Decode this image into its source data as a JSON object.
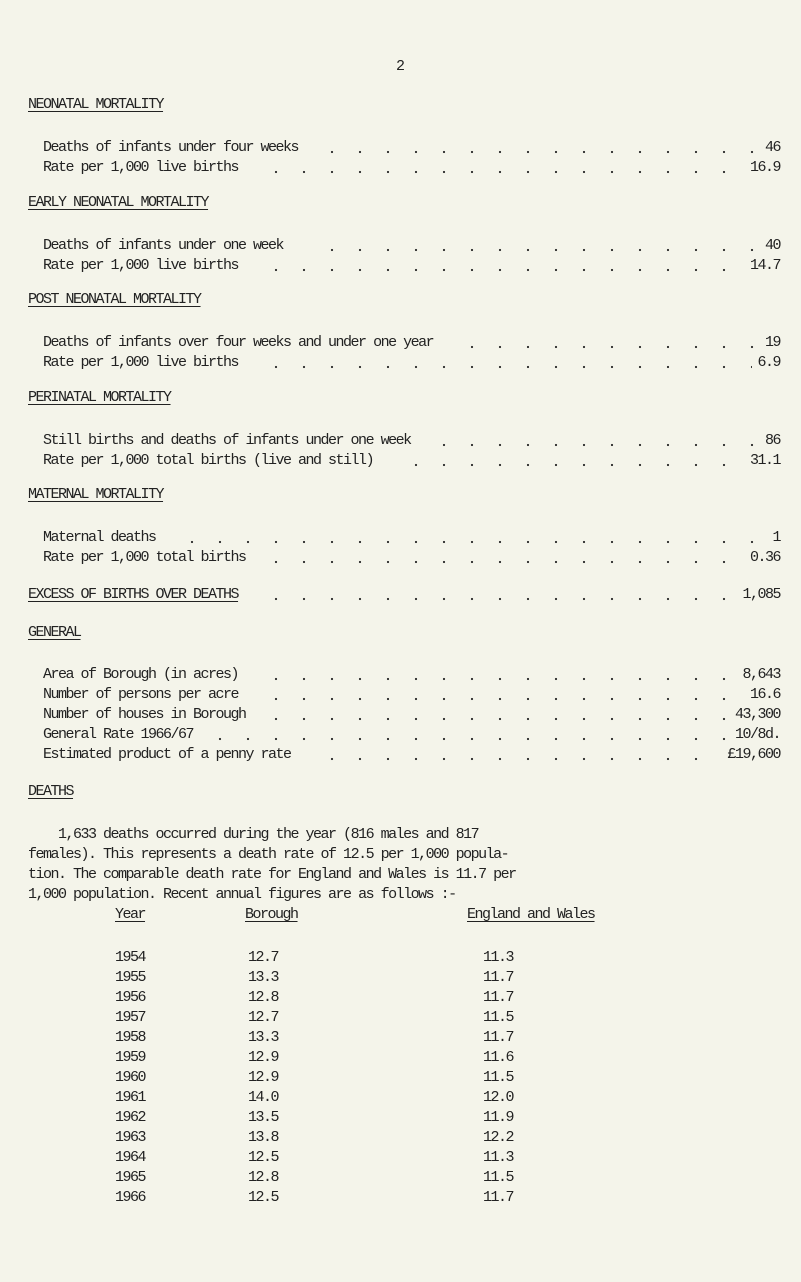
{
  "page_number": "2",
  "sections": [
    {
      "heading": "NEONATAL MORTALITY",
      "rows": [
        {
          "label": "Deaths of infants under four weeks",
          "value": "46"
        },
        {
          "label": "Rate per 1,000 live births",
          "value": "16.9"
        }
      ]
    },
    {
      "heading": "EARLY NEONATAL MORTALITY",
      "rows": [
        {
          "label": "Deaths of infants under one week",
          "value": "40"
        },
        {
          "label": "Rate per 1,000 live births",
          "value": "14.7"
        }
      ]
    },
    {
      "heading": "POST NEONATAL MORTALITY",
      "rows": [
        {
          "label": "Deaths of infants over four weeks and under one year",
          "value": "19"
        },
        {
          "label": "Rate per 1,000 live births",
          "value": "6.9"
        }
      ]
    },
    {
      "heading": "PERINATAL MORTALITY",
      "rows": [
        {
          "label": "Still births and deaths of infants under one week",
          "value": "86"
        },
        {
          "label": "Rate per 1,000 total births (live and still)",
          "value": "31.1"
        }
      ]
    },
    {
      "heading": "MATERNAL MORTALITY",
      "rows": [
        {
          "label": "Maternal deaths",
          "value": "1"
        },
        {
          "label": "Rate per 1,000 total births",
          "value": "0.36"
        }
      ]
    }
  ],
  "excess": {
    "heading": "EXCESS OF BIRTHS OVER DEATHS",
    "value": "1,085"
  },
  "general": {
    "heading": "GENERAL",
    "rows": [
      {
        "label": "Area of Borough (in acres)",
        "value": "8,643"
      },
      {
        "label": "Number of persons per acre",
        "value": "16.6"
      },
      {
        "label": "Number of houses in Borough",
        "value": "43,300"
      },
      {
        "label": "General Rate 1966/67",
        "value": "10/8d."
      },
      {
        "label": "Estimated product of a penny rate",
        "value": "£19,600"
      }
    ]
  },
  "deaths": {
    "heading": "DEATHS",
    "paragraph_lines": [
      "    1,633 deaths occurred during the year (816 males and 817",
      "females). This represents a death rate of 12.5 per 1,000 popula-",
      "tion. The comparable death rate for England and Wales is 11.7 per",
      "1,000 population. Recent annual figures are as follows :-"
    ],
    "table": {
      "headers": [
        "Year",
        "Borough",
        "England and Wales"
      ],
      "rows": [
        [
          "1954",
          "12.7",
          "11.3"
        ],
        [
          "1955",
          "13.3",
          "11.7"
        ],
        [
          "1956",
          "12.8",
          "11.7"
        ],
        [
          "1957",
          "12.7",
          "11.5"
        ],
        [
          "1958",
          "13.3",
          "11.7"
        ],
        [
          "1959",
          "12.9",
          "11.6"
        ],
        [
          "1960",
          "12.9",
          "11.5"
        ],
        [
          "1961",
          "14.0",
          "12.0"
        ],
        [
          "1962",
          "13.5",
          "11.9"
        ],
        [
          "1963",
          "13.8",
          "12.2"
        ],
        [
          "1964",
          "12.5",
          "11.3"
        ],
        [
          "1965",
          "12.8",
          "11.5"
        ],
        [
          "1966",
          "12.5",
          "11.7"
        ]
      ]
    }
  }
}
